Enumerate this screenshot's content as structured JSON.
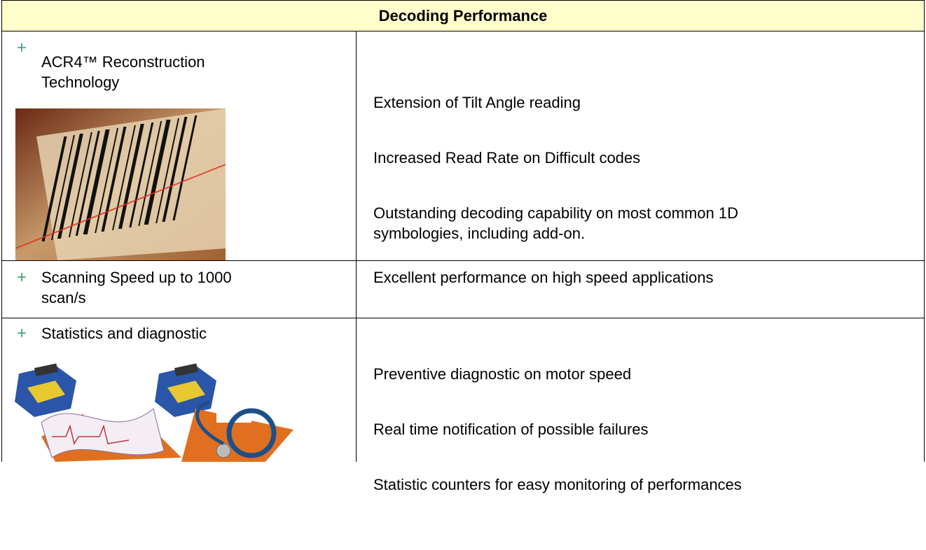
{
  "table": {
    "header": "Decoding Performance",
    "rows": [
      {
        "feature": "ACR4™ Reconstruction\nTechnology",
        "benefits": [
          "Extension of Tilt Angle reading",
          "Increased Read Rate on Difficult codes",
          "Outstanding decoding capability on most common 1D\nsymbologies, including add-on."
        ]
      },
      {
        "feature": "Scanning Speed up to 1000\nscan/s",
        "benefits": [
          "Excellent performance on high speed applications"
        ]
      },
      {
        "feature": "Statistics and diagnostic",
        "benefits": [
          "Preventive diagnostic on motor speed",
          "Real time notification of possible failures",
          "Statistic counters for easy monitoring of performances"
        ]
      }
    ]
  }
}
